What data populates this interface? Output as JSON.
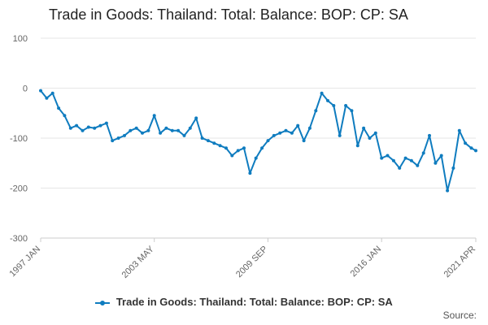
{
  "title": "Trade in Goods: Thailand: Total: Balance: BOP: CP: SA",
  "legend": {
    "label": "Trade in Goods: Thailand: Total: Balance: BOP: CP: SA"
  },
  "source_label": "Source:",
  "colors": {
    "series": "#0f7cbf",
    "grid": "#e6e6e6",
    "axis": "#cccccc",
    "tick_text": "#666666"
  },
  "chart_data": {
    "type": "line",
    "title": "Trade in Goods: Thailand: Total: Balance: BOP: CP: SA",
    "xlabel": "",
    "ylabel": "",
    "ylim": [
      -300,
      100
    ],
    "xlim": [
      "1997-01",
      "2021-04"
    ],
    "yticks": [
      100,
      0,
      -100,
      -200,
      -300
    ],
    "xtick_labels": [
      {
        "date": "1997-01",
        "label": "1997 JAN"
      },
      {
        "date": "2003-05",
        "label": "2003 MAY"
      },
      {
        "date": "2009-09",
        "label": "2009 SEP"
      },
      {
        "date": "2016-01",
        "label": "2016 JAN"
      },
      {
        "date": "2021-04",
        "label": "2021 APR"
      }
    ],
    "grid": true,
    "legend_position": "bottom",
    "series": [
      {
        "name": "Trade in Goods: Thailand: Total: Balance: BOP: CP: SA",
        "x": [
          "1997-01",
          "1997-05",
          "1997-09",
          "1998-01",
          "1998-05",
          "1998-09",
          "1999-01",
          "1999-05",
          "1999-09",
          "2000-01",
          "2000-05",
          "2000-09",
          "2001-01",
          "2001-05",
          "2001-09",
          "2002-01",
          "2002-05",
          "2002-09",
          "2003-01",
          "2003-05",
          "2003-09",
          "2004-01",
          "2004-05",
          "2004-09",
          "2005-01",
          "2005-05",
          "2005-09",
          "2006-01",
          "2006-05",
          "2006-09",
          "2007-01",
          "2007-05",
          "2007-09",
          "2008-01",
          "2008-05",
          "2008-09",
          "2009-01",
          "2009-05",
          "2009-09",
          "2010-01",
          "2010-05",
          "2010-09",
          "2011-01",
          "2011-05",
          "2011-09",
          "2012-01",
          "2012-05",
          "2012-09",
          "2013-01",
          "2013-05",
          "2013-09",
          "2014-01",
          "2014-05",
          "2014-09",
          "2015-01",
          "2015-05",
          "2015-09",
          "2016-01",
          "2016-05",
          "2016-09",
          "2017-01",
          "2017-05",
          "2017-09",
          "2018-01",
          "2018-05",
          "2018-09",
          "2019-01",
          "2019-05",
          "2019-09",
          "2020-01",
          "2020-05",
          "2020-09",
          "2021-01",
          "2021-04"
        ],
        "y": [
          -5,
          -20,
          -10,
          -40,
          -55,
          -80,
          -75,
          -85,
          -78,
          -80,
          -75,
          -70,
          -105,
          -100,
          -95,
          -85,
          -80,
          -90,
          -85,
          -55,
          -90,
          -80,
          -85,
          -85,
          -95,
          -80,
          -60,
          -100,
          -105,
          -110,
          -115,
          -120,
          -135,
          -125,
          -120,
          -170,
          -140,
          -120,
          -105,
          -95,
          -90,
          -85,
          -90,
          -75,
          -105,
          -80,
          -45,
          -10,
          -25,
          -35,
          -95,
          -35,
          -45,
          -115,
          -80,
          -100,
          -90,
          -140,
          -135,
          -145,
          -160,
          -140,
          -145,
          -155,
          -130,
          -95,
          -150,
          -135,
          -205,
          -160,
          -85,
          -110,
          -120,
          -125
        ]
      }
    ]
  }
}
